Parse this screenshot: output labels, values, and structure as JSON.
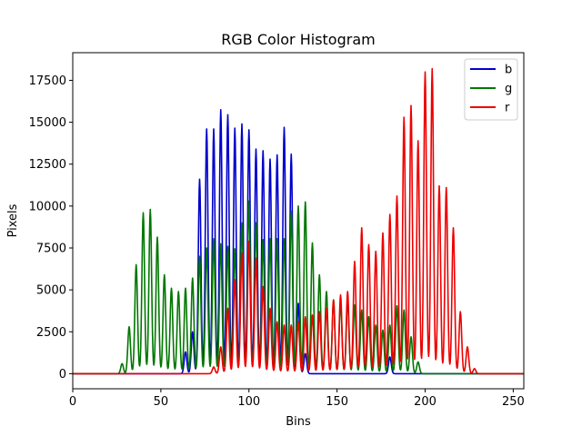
{
  "chart_data": {
    "type": "line",
    "title": "RGB Color Histogram",
    "xlabel": "Bins",
    "ylabel": "Pixels",
    "xlim": [
      0,
      256
    ],
    "ylim": [
      -900,
      19150
    ],
    "xticks": [
      0,
      50,
      100,
      150,
      200,
      250
    ],
    "yticks": [
      0,
      2500,
      5000,
      7500,
      10000,
      12500,
      15000,
      17500
    ],
    "ytick_labels": [
      "0",
      "2500",
      "5000",
      "7500",
      "10000",
      "12500",
      "15000",
      "17500"
    ],
    "legend_position": "top-right",
    "grid": false,
    "series": [
      {
        "name": "b",
        "color": "#0000cc",
        "peaks": [
          {
            "x": 64,
            "y": 1300
          },
          {
            "x": 68,
            "y": 2500
          },
          {
            "x": 72,
            "y": 11600
          },
          {
            "x": 76,
            "y": 14600
          },
          {
            "x": 80,
            "y": 14600
          },
          {
            "x": 84,
            "y": 15750
          },
          {
            "x": 88,
            "y": 15450
          },
          {
            "x": 92,
            "y": 14650
          },
          {
            "x": 96,
            "y": 14900
          },
          {
            "x": 100,
            "y": 14550
          },
          {
            "x": 104,
            "y": 13400
          },
          {
            "x": 108,
            "y": 13300
          },
          {
            "x": 112,
            "y": 12800
          },
          {
            "x": 116,
            "y": 13050
          },
          {
            "x": 120,
            "y": 14700
          },
          {
            "x": 124,
            "y": 13100
          },
          {
            "x": 128,
            "y": 4200
          },
          {
            "x": 132,
            "y": 1200
          },
          {
            "x": 180,
            "y": 1000
          }
        ]
      },
      {
        "name": "g",
        "color": "#007700",
        "peaks": [
          {
            "x": 28,
            "y": 600
          },
          {
            "x": 32,
            "y": 2800
          },
          {
            "x": 36,
            "y": 6500
          },
          {
            "x": 40,
            "y": 9600
          },
          {
            "x": 44,
            "y": 9800
          },
          {
            "x": 48,
            "y": 8150
          },
          {
            "x": 52,
            "y": 5900
          },
          {
            "x": 56,
            "y": 5100
          },
          {
            "x": 60,
            "y": 4900
          },
          {
            "x": 64,
            "y": 5100
          },
          {
            "x": 68,
            "y": 5700
          },
          {
            "x": 72,
            "y": 7000
          },
          {
            "x": 76,
            "y": 7500
          },
          {
            "x": 80,
            "y": 8050
          },
          {
            "x": 84,
            "y": 7750
          },
          {
            "x": 88,
            "y": 7600
          },
          {
            "x": 92,
            "y": 7450
          },
          {
            "x": 96,
            "y": 9000
          },
          {
            "x": 100,
            "y": 10300
          },
          {
            "x": 104,
            "y": 9000
          },
          {
            "x": 108,
            "y": 8000
          },
          {
            "x": 112,
            "y": 8050
          },
          {
            "x": 116,
            "y": 8050
          },
          {
            "x": 120,
            "y": 8050
          },
          {
            "x": 124,
            "y": 9700
          },
          {
            "x": 128,
            "y": 10000
          },
          {
            "x": 132,
            "y": 10250
          },
          {
            "x": 136,
            "y": 7800
          },
          {
            "x": 140,
            "y": 5900
          },
          {
            "x": 144,
            "y": 4900
          },
          {
            "x": 148,
            "y": 4400
          },
          {
            "x": 152,
            "y": 4300
          },
          {
            "x": 156,
            "y": 4350
          },
          {
            "x": 160,
            "y": 4100
          },
          {
            "x": 164,
            "y": 3800
          },
          {
            "x": 168,
            "y": 3400
          },
          {
            "x": 172,
            "y": 2900
          },
          {
            "x": 176,
            "y": 2600
          },
          {
            "x": 180,
            "y": 2900
          },
          {
            "x": 184,
            "y": 4050
          },
          {
            "x": 188,
            "y": 3800
          },
          {
            "x": 192,
            "y": 2200
          },
          {
            "x": 196,
            "y": 700
          }
        ]
      },
      {
        "name": "r",
        "color": "#ee0000",
        "peaks": [
          {
            "x": 80,
            "y": 400
          },
          {
            "x": 84,
            "y": 1600
          },
          {
            "x": 88,
            "y": 3900
          },
          {
            "x": 92,
            "y": 5600
          },
          {
            "x": 96,
            "y": 7200
          },
          {
            "x": 100,
            "y": 7900
          },
          {
            "x": 104,
            "y": 6900
          },
          {
            "x": 108,
            "y": 5200
          },
          {
            "x": 112,
            "y": 3900
          },
          {
            "x": 116,
            "y": 3100
          },
          {
            "x": 120,
            "y": 2900
          },
          {
            "x": 124,
            "y": 2900
          },
          {
            "x": 128,
            "y": 3100
          },
          {
            "x": 132,
            "y": 3400
          },
          {
            "x": 136,
            "y": 3500
          },
          {
            "x": 140,
            "y": 3700
          },
          {
            "x": 144,
            "y": 3900
          },
          {
            "x": 148,
            "y": 4400
          },
          {
            "x": 152,
            "y": 4700
          },
          {
            "x": 156,
            "y": 4900
          },
          {
            "x": 160,
            "y": 6700
          },
          {
            "x": 164,
            "y": 8700
          },
          {
            "x": 168,
            "y": 7700
          },
          {
            "x": 172,
            "y": 7300
          },
          {
            "x": 176,
            "y": 8400
          },
          {
            "x": 180,
            "y": 9500
          },
          {
            "x": 184,
            "y": 10600
          },
          {
            "x": 188,
            "y": 15300
          },
          {
            "x": 192,
            "y": 16000
          },
          {
            "x": 196,
            "y": 13900
          },
          {
            "x": 200,
            "y": 18000
          },
          {
            "x": 204,
            "y": 18200
          },
          {
            "x": 208,
            "y": 11200
          },
          {
            "x": 212,
            "y": 11100
          },
          {
            "x": 216,
            "y": 8700
          },
          {
            "x": 220,
            "y": 3700
          },
          {
            "x": 224,
            "y": 1600
          },
          {
            "x": 228,
            "y": 300
          }
        ]
      }
    ]
  }
}
